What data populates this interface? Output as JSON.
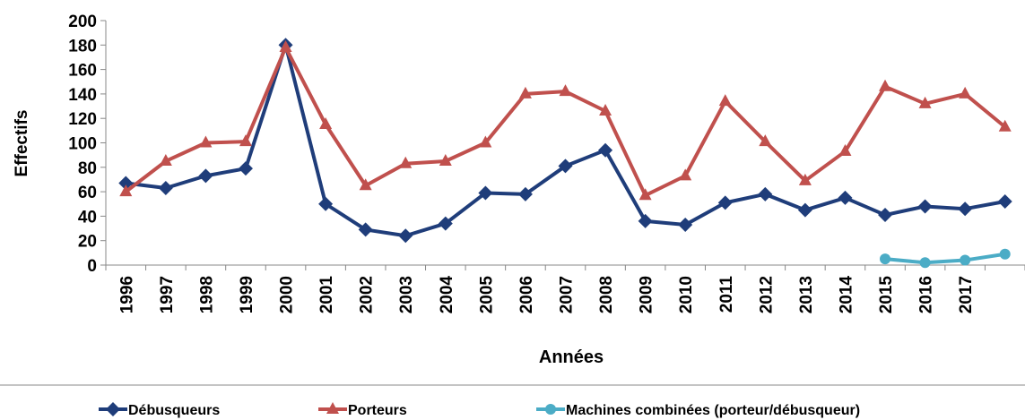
{
  "chart_data": {
    "type": "line",
    "categories": [
      "1996",
      "1997",
      "1998",
      "1999",
      "2000",
      "2001",
      "2002",
      "2003",
      "2004",
      "2005",
      "2006",
      "2007",
      "2008",
      "2009",
      "2010",
      "2011",
      "2012",
      "2013",
      "2014",
      "2015",
      "2016",
      "2017",
      null
    ],
    "series": [
      {
        "name": "Débusqueurs",
        "color": "#1f3d7a",
        "marker": "diamond",
        "values": [
          67,
          63,
          73,
          79,
          180,
          50,
          29,
          24,
          34,
          59,
          58,
          81,
          94,
          36,
          33,
          51,
          58,
          45,
          55,
          41,
          48,
          46,
          52
        ]
      },
      {
        "name": "Porteurs",
        "color": "#c0504d",
        "marker": "triangle",
        "values": [
          60,
          85,
          100,
          101,
          178,
          115,
          65,
          83,
          85,
          100,
          140,
          142,
          126,
          57,
          73,
          134,
          101,
          69,
          93,
          146,
          132,
          140,
          113
        ]
      },
      {
        "name": "Machines combinées (porteur/débusqueur)",
        "color": "#4bacc6",
        "marker": "circle",
        "values": [
          null,
          null,
          null,
          null,
          null,
          null,
          null,
          null,
          null,
          null,
          null,
          null,
          null,
          null,
          null,
          null,
          null,
          null,
          null,
          5,
          2,
          4,
          9
        ]
      }
    ],
    "ylim": [
      0,
      200
    ],
    "yticks": [
      0,
      20,
      40,
      60,
      80,
      100,
      120,
      140,
      160,
      180,
      200
    ],
    "y_label": "Effectifs",
    "x_label": "Années",
    "legend": "bottom"
  }
}
